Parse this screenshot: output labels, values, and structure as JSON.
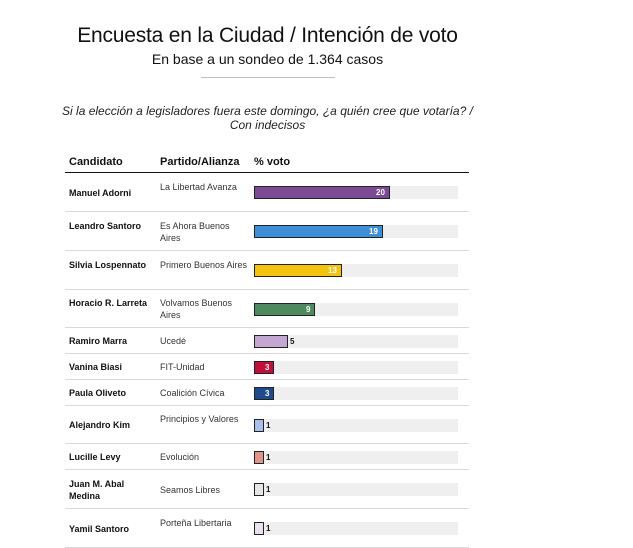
{
  "header": {
    "title": "Encuesta en la Ciudad / Intención de voto",
    "subtitle": "En base a un sondeo de 1.364 casos",
    "question": "Si la elección a legisladores fuera este domingo, ¿a quién cree que votaría? / Con indecisos"
  },
  "table_headers": {
    "candidate": "Candidato",
    "party": "Partido/Alianza",
    "vote": "% voto"
  },
  "chart_data": {
    "type": "bar",
    "orientation": "horizontal",
    "title": "Encuesta en la Ciudad / Intención de voto",
    "subtitle": "En base a un sondeo de 1.364 casos",
    "xlim": [
      0,
      30
    ],
    "categories": [
      "Manuel Adorni",
      "Leandro Santoro",
      "Silvia Lospennato",
      "Horacio R. Larreta",
      "Ramiro Marra",
      "Vanina Biasi",
      "Paula Oliveto",
      "Alejandro Kim",
      "Lucille Levy",
      "Juan M. Abal Medina",
      "Yamil Santoro"
    ],
    "parties": [
      "La Libertad Avanza",
      "Es Ahora Buenos Aires",
      "Primero Buenos Aires",
      "Volvamos Buenos Aires",
      "Ucedé",
      "FIT-Unidad",
      "Coalición Cívica",
      "Principios y Valores",
      "Evolución",
      "Seamos Libres",
      "Porteña Libertaria"
    ],
    "values": [
      20,
      19,
      13,
      9,
      5,
      3,
      3,
      1,
      1,
      1,
      1
    ],
    "colors": [
      "#7a4a94",
      "#3f8fd6",
      "#f2c40f",
      "#4e8a5f",
      "#c4a6d2",
      "#c0103a",
      "#1d4b8c",
      "#a9c1ea",
      "#e0948e",
      "#e6e6e6",
      "#e9e1f1"
    ]
  }
}
